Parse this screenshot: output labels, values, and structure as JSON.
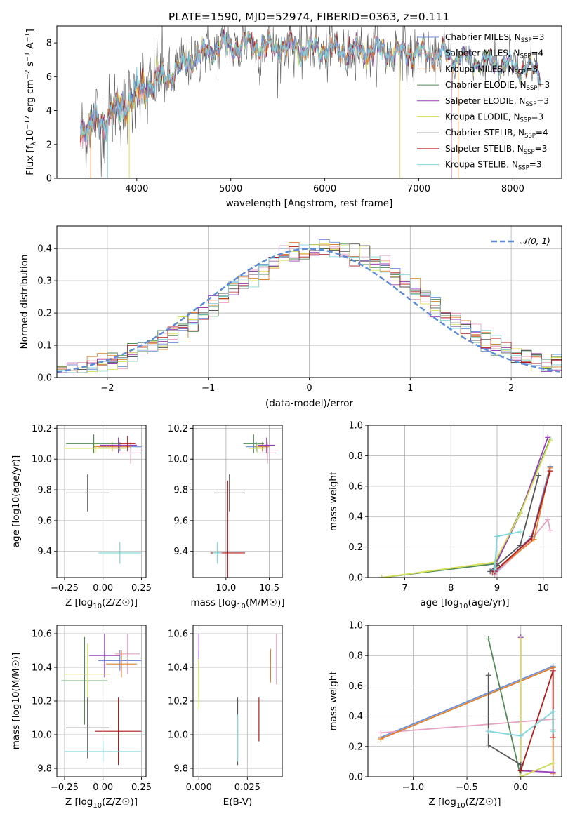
{
  "title": "PLATE=1590, MJD=52974, FIBERID=0363, z=0.111",
  "colors": {
    "c1": "#6b8fd6",
    "c2": "#e6a3c2",
    "c3": "#e0802f",
    "c4": "#4f8a55",
    "c5": "#9a3db8",
    "c6": "#d8e05a",
    "c7": "#555555",
    "c8": "#b01b1b",
    "c9": "#7fd6dc",
    "gauss": "#5c8bd6"
  },
  "chart_data": [
    {
      "id": "spectrum",
      "type": "line",
      "xlabel": "wavelength [Angstrom, rest frame]",
      "ylabel": "Flux [f_λ10^-17 erg cm^-2 s^-1 A^-1]",
      "xlim": [
        3150,
        8520
      ],
      "ylim": [
        0,
        9
      ],
      "xticks": [
        4000,
        5000,
        6000,
        7000,
        8000
      ],
      "yticks": [
        0,
        2,
        4,
        6,
        8
      ],
      "grid": false,
      "legend_position": "top-right",
      "continuum": {
        "x": [
          3400,
          3500,
          3600,
          3700,
          3800,
          3900,
          4000,
          4100,
          4200,
          4300,
          4400,
          4500,
          4600,
          4700,
          4800,
          4900,
          5000,
          5200,
          5400,
          5600,
          5800,
          6000,
          6200,
          6400,
          6600,
          6800,
          7000,
          7200,
          7400,
          7600,
          7800,
          8000,
          8200,
          8300
        ],
        "y": [
          2.9,
          3.1,
          3.3,
          3.6,
          4.1,
          4.4,
          5.1,
          5.4,
          5.7,
          6.0,
          6.3,
          6.7,
          7.1,
          7.3,
          7.6,
          7.9,
          7.8,
          7.9,
          7.7,
          7.8,
          7.6,
          7.6,
          7.5,
          7.6,
          7.5,
          7.4,
          7.4,
          7.3,
          7.1,
          6.9,
          6.8,
          6.6,
          6.4,
          6.2
        ]
      },
      "series": [
        {
          "name": "Chabrier MILES, N_SSP=3",
          "label_main": "Chabrier MILES, N",
          "label_sub": "SSP",
          "label_end": "=3",
          "color": "#6b8fd6"
        },
        {
          "name": "Salpeter MILES, N_SSP=4",
          "label_main": "Salpeter MILES, N",
          "label_sub": "SSP",
          "label_end": "=4",
          "color": "#e6a3c2"
        },
        {
          "name": "Kroupa MILES, N_SSP=3",
          "label_main": "Kroupa MILES, N",
          "label_sub": "SSP",
          "label_end": "=3",
          "color": "#e0802f"
        },
        {
          "name": "Chabrier ELODIE, N_SSP=3",
          "label_main": "Chabrier ELODIE, N",
          "label_sub": "SSP",
          "label_end": "=3",
          "color": "#4f8a55"
        },
        {
          "name": "Salpeter ELODIE, N_SSP=3",
          "label_main": "Salpeter ELODIE, N",
          "label_sub": "SSP",
          "label_end": "=3",
          "color": "#9a3db8"
        },
        {
          "name": "Kroupa ELODIE, N_SSP=3",
          "label_main": "Kroupa ELODIE, N",
          "label_sub": "SSP",
          "label_end": "=3",
          "color": "#d8e05a"
        },
        {
          "name": "Chabrier STELIB, N_SSP=4",
          "label_main": "Chabrier STELIB, N",
          "label_sub": "SSP",
          "label_end": "=4",
          "color": "#555555"
        },
        {
          "name": "Salpeter STELIB, N_SSP=3",
          "label_main": "Salpeter STELIB, N",
          "label_sub": "SSP",
          "label_end": "=3",
          "color": "#b01b1b"
        },
        {
          "name": "Kroupa STELIB, N_SSP=3",
          "label_main": "Kroupa STELIB, N",
          "label_sub": "SSP",
          "label_end": "=3",
          "color": "#7fd6dc"
        }
      ]
    },
    {
      "id": "residuals",
      "type": "line",
      "xlabel": "(data-model)/error",
      "ylabel": "Normed distribution",
      "xlim": [
        -2.5,
        2.5
      ],
      "ylim": [
        0,
        0.47
      ],
      "xticks": [
        -2,
        -1,
        0,
        1,
        2
      ],
      "xticklabels": [
        "−2",
        "−1",
        "0",
        "1",
        "2"
      ],
      "yticks": [
        0.0,
        0.1,
        0.2,
        0.3,
        0.4
      ],
      "yticklabels": [
        "0.0",
        "0.1",
        "0.2",
        "0.3",
        "0.4"
      ],
      "grid": true,
      "legend_position": "top-right",
      "gauss_label": "𝒩(0, 1)",
      "bin_width": 0.1
    },
    {
      "id": "age-Z",
      "type": "scatter",
      "xlabel_main": "Z [log",
      "xlabel_sub": "10",
      "xlabel_end": "(Z/Z☉)]",
      "ylabel": "age [log10(age/yr)]",
      "xlim": [
        -0.3,
        0.28
      ],
      "ylim": [
        9.23,
        10.22
      ],
      "xticks": [
        -0.25,
        0.0,
        0.25
      ],
      "xticklabels": [
        "−0.25",
        "0.00",
        "0.25"
      ],
      "yticks": [
        9.4,
        9.6,
        9.8,
        10.0,
        10.2
      ],
      "yticklabels": [
        "9.4",
        "9.6",
        "9.8",
        "10.0",
        "10.2"
      ],
      "grid": true,
      "points": [
        {
          "x": 0.11,
          "xerr": 0.14,
          "y": 10.08,
          "yerr": 0.03,
          "color": "#6b8fd6"
        },
        {
          "x": 0.18,
          "xerr": 0.07,
          "y": 10.04,
          "yerr": 0.07,
          "color": "#e6a3c2"
        },
        {
          "x": 0.06,
          "xerr": 0.12,
          "y": 10.08,
          "yerr": 0.03,
          "color": "#e0802f"
        },
        {
          "x": -0.06,
          "xerr": 0.18,
          "y": 10.1,
          "yerr": 0.06,
          "color": "#4f8a55"
        },
        {
          "x": 0.1,
          "xerr": 0.12,
          "y": 10.09,
          "yerr": 0.05,
          "color": "#9a3db8"
        },
        {
          "x": -0.05,
          "xerr": 0.2,
          "y": 10.07,
          "yerr": 0.03,
          "color": "#d8e05a"
        },
        {
          "x": -0.1,
          "xerr": 0.14,
          "y": 9.78,
          "yerr": 0.12,
          "color": "#555555"
        },
        {
          "x": 0.16,
          "xerr": 0.05,
          "y": 10.1,
          "yerr": 0.05,
          "color": "#b01b1b"
        },
        {
          "x": 0.11,
          "xerr": 0.14,
          "y": 9.39,
          "yerr": 0.07,
          "color": "#7fd6dc"
        }
      ]
    },
    {
      "id": "age-mass",
      "type": "scatter",
      "xlabel_main": "mass [log",
      "xlabel_sub": "10",
      "xlabel_end": "(M/M☉)]",
      "xlim": [
        9.62,
        10.65
      ],
      "ylim": [
        9.23,
        10.22
      ],
      "xticks": [
        10.0,
        10.5
      ],
      "xticklabels": [
        "10.0",
        "10.5"
      ],
      "yticks": [
        9.4,
        9.6,
        9.8,
        10.0,
        10.2
      ],
      "yticklabels": [
        "9.4",
        "9.6",
        "9.8",
        "10.0",
        "10.2"
      ],
      "grid": true,
      "points": [
        {
          "x": 10.35,
          "xerr": 0.12,
          "y": 10.08,
          "yerr": 0.03,
          "color": "#6b8fd6"
        },
        {
          "x": 10.48,
          "xerr": 0.1,
          "y": 10.04,
          "yerr": 0.07,
          "color": "#e6a3c2"
        },
        {
          "x": 10.42,
          "xerr": 0.08,
          "y": 10.08,
          "yerr": 0.03,
          "color": "#e0802f"
        },
        {
          "x": 10.32,
          "xerr": 0.12,
          "y": 10.1,
          "yerr": 0.06,
          "color": "#4f8a55"
        },
        {
          "x": 10.47,
          "xerr": 0.1,
          "y": 10.09,
          "yerr": 0.05,
          "color": "#9a3db8"
        },
        {
          "x": 10.36,
          "xerr": 0.1,
          "y": 10.07,
          "yerr": 0.03,
          "color": "#d8e05a"
        },
        {
          "x": 10.04,
          "xerr": 0.18,
          "y": 9.78,
          "yerr": 0.12,
          "color": "#555555"
        },
        {
          "x": 10.02,
          "xerr": 0.2,
          "y": 9.39,
          "yerr": 0.47,
          "color": "#b01b1b"
        },
        {
          "x": 9.9,
          "xerr": 0.05,
          "y": 9.39,
          "yerr": 0.07,
          "color": "#7fd6dc"
        }
      ]
    },
    {
      "id": "weight-age",
      "type": "line",
      "xlabel_main": "age [log",
      "xlabel_sub": "10",
      "xlabel_end": "(age/yr)]",
      "ylabel": "mass weight",
      "xlim": [
        6.2,
        10.4
      ],
      "ylim": [
        0,
        1
      ],
      "xticks": [
        7,
        8,
        9,
        10
      ],
      "yticks": [
        0.0,
        0.2,
        0.4,
        0.6,
        0.8,
        1.0
      ],
      "yticklabels": [
        "0.0",
        "0.2",
        "0.4",
        "0.6",
        "0.8",
        "1.0"
      ],
      "grid": true,
      "series": [
        {
          "color": "#6b8fd6",
          "x": [
            8.95,
            9.75,
            10.15
          ],
          "y": [
            0.03,
            0.27,
            0.73
          ]
        },
        {
          "color": "#e6a3c2",
          "x": [
            8.95,
            9.75,
            10.1,
            10.15
          ],
          "y": [
            0.02,
            0.25,
            0.38,
            0.31
          ]
        },
        {
          "color": "#e0802f",
          "x": [
            8.9,
            9.8,
            10.15
          ],
          "y": [
            0.03,
            0.25,
            0.72
          ]
        },
        {
          "color": "#4f8a55",
          "x": [
            6.5,
            8.95,
            9.5,
            10.15
          ],
          "y": [
            0.0,
            0.09,
            0.43,
            0.91
          ]
        },
        {
          "color": "#9a3db8",
          "x": [
            8.9,
            9.5,
            10.1
          ],
          "y": [
            0.04,
            0.42,
            0.92
          ]
        },
        {
          "color": "#d8e05a",
          "x": [
            6.5,
            8.95,
            9.5,
            10.15
          ],
          "y": [
            0.0,
            0.1,
            0.42,
            0.9
          ]
        },
        {
          "color": "#555555",
          "x": [
            8.85,
            9.0,
            9.5,
            9.9
          ],
          "y": [
            0.04,
            0.08,
            0.21,
            0.67
          ]
        },
        {
          "color": "#b01b1b",
          "x": [
            8.95,
            9.75,
            10.15
          ],
          "y": [
            0.04,
            0.26,
            0.7
          ]
        },
        {
          "color": "#7fd6dc",
          "x": [
            8.95,
            9.0,
            9.5
          ],
          "y": [
            0.05,
            0.27,
            0.3
          ]
        }
      ]
    },
    {
      "id": "mass-Z",
      "type": "scatter",
      "xlabel_main": "Z [log",
      "xlabel_sub": "10",
      "xlabel_end": "(Z/Z☉)]",
      "ylabel": "mass [log10(M/M☉)]",
      "xlim": [
        -0.3,
        0.28
      ],
      "ylim": [
        9.75,
        10.65
      ],
      "xticks": [
        -0.25,
        0.0,
        0.25
      ],
      "xticklabels": [
        "−0.25",
        "0.00",
        "0.25"
      ],
      "yticks": [
        9.8,
        10.0,
        10.2,
        10.4,
        10.6
      ],
      "yticklabels": [
        "9.8",
        "10.0",
        "10.2",
        "10.4",
        "10.6"
      ],
      "grid": true,
      "points": [
        {
          "x": 0.11,
          "xerr": 0.14,
          "y": 10.44,
          "yerr": 0.06,
          "color": "#6b8fd6"
        },
        {
          "x": 0.16,
          "xerr": 0.08,
          "y": 10.48,
          "yerr": 0.12,
          "color": "#e6a3c2"
        },
        {
          "x": 0.12,
          "xerr": 0.1,
          "y": 10.42,
          "yerr": 0.08,
          "color": "#e0802f"
        },
        {
          "x": -0.12,
          "xerr": 0.15,
          "y": 10.32,
          "yerr": 0.26,
          "color": "#4f8a55"
        },
        {
          "x": 0.01,
          "xerr": 0.1,
          "y": 10.47,
          "yerr": 0.13,
          "color": "#9a3db8"
        },
        {
          "x": -0.1,
          "xerr": 0.15,
          "y": 10.36,
          "yerr": 0.18,
          "color": "#d8e05a"
        },
        {
          "x": -0.1,
          "xerr": 0.14,
          "y": 10.04,
          "yerr": 0.18,
          "color": "#555555"
        },
        {
          "x": 0.1,
          "xerr": 0.15,
          "y": 10.02,
          "yerr": 0.2,
          "color": "#b01b1b"
        },
        {
          "x": 0.0,
          "xerr": 0.25,
          "y": 9.9,
          "yerr": 0.06,
          "color": "#7fd6dc"
        }
      ]
    },
    {
      "id": "mass-ebv",
      "type": "scatter",
      "xlabel": "E(B-V)",
      "xlim": [
        -0.003,
        0.043
      ],
      "ylim": [
        9.75,
        10.65
      ],
      "xticks": [
        0.0,
        0.025
      ],
      "xticklabels": [
        "0.000",
        "0.025"
      ],
      "yticks": [
        9.8,
        10.0,
        10.2,
        10.4,
        10.6
      ],
      "yticklabels": [
        "9.8",
        "10.0",
        "10.2",
        "10.4",
        "10.6"
      ],
      "grid": true,
      "points": [
        {
          "x": 0.0,
          "y": 10.44,
          "yerr": 0.06,
          "color": "#6b8fd6"
        },
        {
          "x": 0.04,
          "y": 10.45,
          "yerr": 0.15,
          "color": "#e6a3c2"
        },
        {
          "x": 0.037,
          "y": 10.41,
          "yerr": 0.1,
          "color": "#e0802f"
        },
        {
          "x": 0.0,
          "y": 10.32,
          "yerr": 0.1,
          "color": "#4f8a55"
        },
        {
          "x": 0.0,
          "y": 10.5,
          "yerr": 0.1,
          "color": "#9a3db8"
        },
        {
          "x": 0.0,
          "y": 10.3,
          "yerr": 0.15,
          "color": "#d8e05a"
        },
        {
          "x": 0.02,
          "y": 10.02,
          "yerr": 0.2,
          "color": "#555555"
        },
        {
          "x": 0.031,
          "y": 10.09,
          "yerr": 0.13,
          "color": "#b01b1b"
        },
        {
          "x": 0.02,
          "y": 9.98,
          "yerr": 0.14,
          "color": "#7fd6dc"
        }
      ]
    },
    {
      "id": "weight-Z",
      "type": "line",
      "xlabel_main": "Z [log",
      "xlabel_sub": "10",
      "xlabel_end": "(Z/Z☉)]",
      "ylabel": "mass weight",
      "xlim": [
        -1.42,
        0.38
      ],
      "ylim": [
        0,
        1
      ],
      "xticks": [
        -1.0,
        -0.5,
        0.0
      ],
      "xticklabels": [
        "−1.0",
        "−0.5",
        "0.0"
      ],
      "yticks": [
        0.0,
        0.2,
        0.4,
        0.6,
        0.8,
        1.0
      ],
      "yticklabels": [
        "0.0",
        "0.2",
        "0.4",
        "0.6",
        "0.8",
        "1.0"
      ],
      "grid": true,
      "series": [
        {
          "color": "#6b8fd6",
          "x": [
            -1.3,
            0.3
          ],
          "y": [
            0.26,
            0.73
          ]
        },
        {
          "color": "#e6a3c2",
          "x": [
            -1.3,
            0.3,
            0.3
          ],
          "y": [
            0.29,
            0.38,
            0.31
          ]
        },
        {
          "color": "#e0802f",
          "x": [
            -1.3,
            0.3,
            0.3
          ],
          "y": [
            0.25,
            0.72,
            0.02
          ]
        },
        {
          "color": "#4f8a55",
          "x": [
            -0.3,
            0.0,
            0.3
          ],
          "y": [
            0.91,
            0.0,
            0.09
          ]
        },
        {
          "color": "#9a3db8",
          "x": [
            0.0,
            0.0,
            0.3
          ],
          "y": [
            0.92,
            0.04,
            0.03
          ]
        },
        {
          "color": "#d8e05a",
          "x": [
            0.0,
            0.0,
            0.3
          ],
          "y": [
            0.91,
            0.0,
            0.09
          ]
        },
        {
          "color": "#555555",
          "x": [
            -0.3,
            -0.3,
            0.0,
            0.0
          ],
          "y": [
            0.67,
            0.21,
            0.08,
            0.04
          ]
        },
        {
          "color": "#b01b1b",
          "x": [
            0.0,
            0.3,
            0.3
          ],
          "y": [
            0.04,
            0.7,
            0.26
          ]
        },
        {
          "color": "#7fd6dc",
          "x": [
            -0.3,
            0.0,
            0.3,
            0.3
          ],
          "y": [
            0.3,
            0.27,
            0.43,
            0.3
          ]
        }
      ]
    }
  ]
}
